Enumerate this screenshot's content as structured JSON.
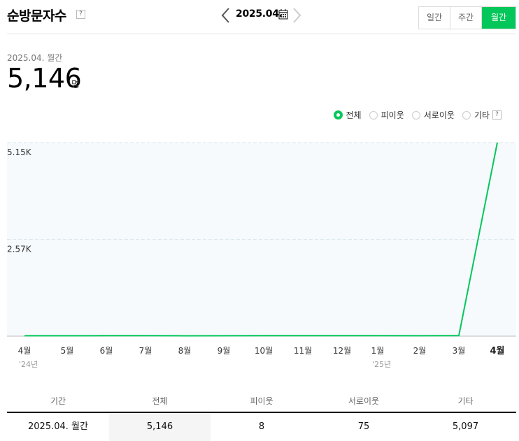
{
  "header": {
    "title": "순방문자수",
    "help": "?",
    "date": "2025.04.",
    "tabs": [
      {
        "label": "일간",
        "active": false
      },
      {
        "label": "주간",
        "active": false
      },
      {
        "label": "월간",
        "active": true
      }
    ]
  },
  "summary": {
    "period": "2025.04. 월간",
    "value": "5,146",
    "unit": "명"
  },
  "legend": {
    "items": [
      {
        "label": "전체",
        "selected": true
      },
      {
        "label": "피이웃",
        "selected": false
      },
      {
        "label": "서로이웃",
        "selected": false
      },
      {
        "label": "기타",
        "selected": false
      }
    ],
    "help": "?"
  },
  "chart_data": {
    "type": "line",
    "categories": [
      "4월",
      "5월",
      "6월",
      "7월",
      "8월",
      "9월",
      "10월",
      "11월",
      "12월",
      "1월",
      "2월",
      "3월",
      "4월"
    ],
    "year_labels": [
      {
        "index": 0,
        "label": "'24년"
      },
      {
        "index": 9,
        "label": "'25년"
      }
    ],
    "series": [
      {
        "values": [
          12,
          11,
          13,
          14,
          10,
          12,
          15,
          14,
          13,
          14,
          12,
          15,
          5146
        ]
      }
    ],
    "ytick_labels": [
      "2.57K",
      "5.15K"
    ],
    "ytick_values": [
      2573,
      5146
    ],
    "ylim": [
      0,
      5146
    ],
    "grid": true,
    "line_color": "#03c75a",
    "background_color": "#f6fafd"
  },
  "table": {
    "headers": [
      "기간",
      "전체",
      "피이웃",
      "서로이웃",
      "기타"
    ],
    "rows": [
      [
        "2025.04. 월간",
        "5,146",
        "8",
        "75",
        "5,097"
      ]
    ]
  }
}
